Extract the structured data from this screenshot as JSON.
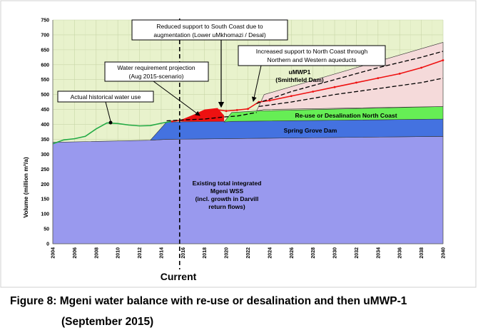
{
  "chart_data": {
    "type": "area",
    "ylabel": "Volume (million m³/a)",
    "xlim": [
      2004,
      2040
    ],
    "ylim": [
      0,
      750
    ],
    "x_ticks": [
      "2004",
      "2006",
      "2008",
      "2010",
      "2012",
      "2014",
      "2016",
      "2018",
      "2020",
      "2022",
      "2024",
      "2026",
      "2028",
      "2030",
      "2032",
      "2034",
      "2036",
      "2038",
      "2040"
    ],
    "y_ticks": [
      "0",
      "50",
      "100",
      "150",
      "200",
      "250",
      "300",
      "350",
      "400",
      "450",
      "500",
      "550",
      "600",
      "650",
      "700",
      "750"
    ],
    "current_year": 2015.7,
    "current_label": "Current",
    "stacked_areas": [
      {
        "label": "Existing total integrated\nMgeni WSS\n(incl. growth in Darvill\nreturn flows)",
        "color": "#9999ee",
        "x": [
          2004,
          2013,
          2014.5,
          2040
        ],
        "lower": [
          0,
          0,
          0,
          0
        ],
        "upper": [
          340,
          347,
          350,
          360
        ]
      },
      {
        "label": "Spring Grove Dam",
        "color": "#4472e0",
        "x": [
          2013,
          2014.5,
          2040
        ],
        "lower": [
          347,
          350,
          360
        ],
        "upper": [
          347,
          408,
          418
        ]
      },
      {
        "label": "Re-use or Desalination North Coast",
        "color": "#66ee55",
        "x": [
          2019.8,
          2020.5,
          2022.8,
          2040
        ],
        "lower": [
          408,
          410,
          411,
          418
        ],
        "upper": [
          408,
          440,
          445,
          460
        ]
      },
      {
        "label": "uMWP1\n(Smithfield Dam)",
        "color": "#f5dada",
        "x": [
          2022.8,
          2023.5,
          2040
        ],
        "lower": [
          445,
          450,
          460
        ],
        "upper": [
          445,
          500,
          675
        ]
      }
    ],
    "series": [
      {
        "name": "Actual historical water use",
        "color": "#22aa44",
        "style": "solid",
        "x": [
          2004,
          2005,
          2006,
          2007,
          2008,
          2009,
          2010,
          2011,
          2012,
          2013,
          2014,
          2015
        ],
        "y": [
          335,
          348,
          352,
          360,
          385,
          405,
          403,
          398,
          395,
          396,
          404,
          410
        ]
      },
      {
        "name": "Water requirement projection\n(Aug 2015-scenario)",
        "color": "#ee1111",
        "style": "solid-dotted",
        "x": [
          2015,
          2016,
          2017,
          2018,
          2019,
          2020,
          2021,
          2022,
          2023,
          2024,
          2026,
          2028,
          2030,
          2032,
          2034,
          2036,
          2038,
          2040
        ],
        "y": [
          410,
          415,
          425,
          438,
          450,
          445,
          448,
          452,
          475,
          480,
          495,
          510,
          525,
          540,
          555,
          570,
          590,
          615
        ]
      },
      {
        "name": "",
        "color": "#000000",
        "style": "dashed",
        "x": [
          2022.8,
          2026,
          2030,
          2034,
          2038,
          2040
        ],
        "y": [
          470,
          510,
          550,
          590,
          625,
          645
        ]
      },
      {
        "name": "",
        "color": "#000000",
        "style": "dashed",
        "x": [
          2023,
          2026,
          2030,
          2034,
          2038,
          2040
        ],
        "y": [
          460,
          475,
          500,
          520,
          540,
          555
        ]
      },
      {
        "name": "",
        "color": "#000000",
        "style": "dashed",
        "x": [
          2014.5,
          2016,
          2018,
          2019.8,
          2021,
          2022.8
        ],
        "y": [
          412,
          415,
          418,
          425,
          428,
          440
        ]
      }
    ],
    "deficit_patch": {
      "color": "#ee1111",
      "x": [
        2015.8,
        2017,
        2018,
        2019.2,
        2019.8
      ],
      "upper": [
        415,
        433,
        450,
        455,
        430
      ],
      "lower": [
        410,
        410,
        410,
        410,
        410
      ]
    },
    "annotations": [
      {
        "text": "Reduced support to South Coast due to\naugmentation (Lower uMkhomazi / Desal)",
        "arrow_to": [
          2019.6,
          448
        ],
        "boxed": true
      },
      {
        "text": "Water requirement projection\n(Aug 2015-scenario)",
        "arrow_to": [
          2018.2,
          440
        ],
        "boxed": true
      },
      {
        "text": "Increased support to North Coast through\nNorthern and Western aqueducts",
        "arrow_to": [
          2022.8,
          458
        ],
        "boxed": true
      },
      {
        "text": "Actual historical water use",
        "arrow_to": [
          2009.4,
          406
        ],
        "boxed": true
      },
      {
        "text": "uMWP1\n(Smithfield Dam)",
        "boxed": false
      },
      {
        "text": "Re-use or Desalination North Coast",
        "boxed": false
      },
      {
        "text": "Spring Grove Dam",
        "boxed": false
      },
      {
        "text": "Existing total integrated\nMgeni WSS\n(incl. growth in Darvill\nreturn flows)",
        "boxed": false
      }
    ],
    "grid": true,
    "legend": "none"
  },
  "labels": {
    "ylabel": "Volume (million m³/a)",
    "current": "Current",
    "reduced_support_1": "Reduced support to South Coast due to",
    "reduced_support_2": "augmentation (Lower uMkhomazi / Desal)",
    "water_req_1": "Water requirement projection",
    "water_req_2": "(Aug 2015-scenario)",
    "increased_support_1": "Increased support to North Coast through",
    "increased_support_2": "Northern and Western aqueducts",
    "historical": "Actual historical water use",
    "umwp_1": "uMWP1",
    "umwp_2": "(Smithfield Dam)",
    "reuse": "Re-use or Desalination North Coast",
    "spring_grove": "Spring Grove Dam",
    "existing_1": "Existing total integrated",
    "existing_2": "Mgeni WSS",
    "existing_3": "(incl. growth in Darvill",
    "existing_4": "return flows)"
  },
  "caption": {
    "line1": "Figure 8: Mgeni water balance with re-use or desalination and then uMWP-1",
    "line2": "(September 2015)"
  }
}
